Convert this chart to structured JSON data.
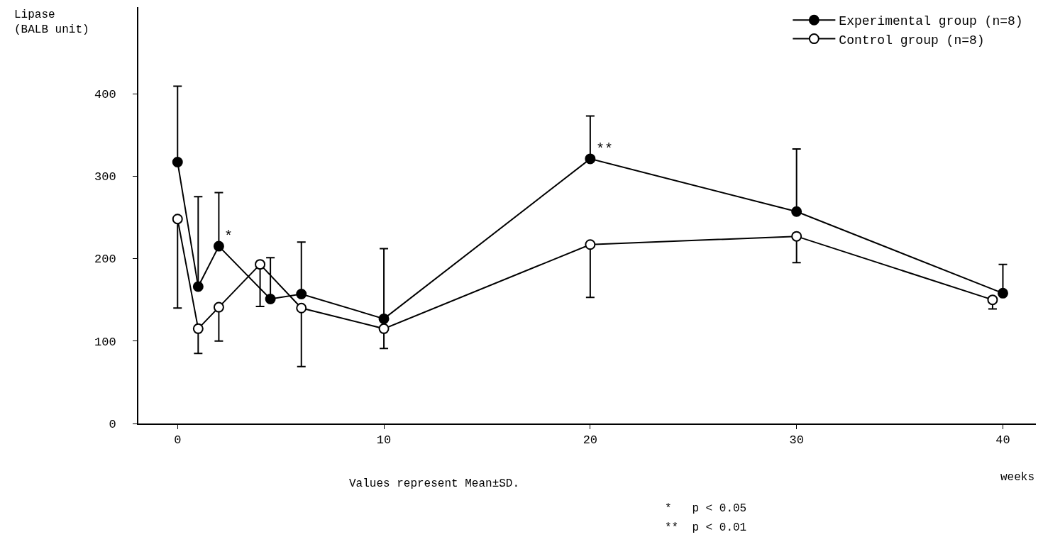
{
  "chart_data": {
    "type": "line",
    "ylabel": "Lipase\n(BALB unit)",
    "xlabel": "weeks",
    "xlim": [
      -1.9,
      41.6
    ],
    "xticks": [
      0,
      10,
      20,
      30,
      40
    ],
    "ylim": [
      0,
      505
    ],
    "yticks": [
      0,
      100,
      200,
      300,
      400
    ],
    "marker": "circle",
    "line_style": "solid",
    "legend": "top right",
    "series": [
      {
        "name": "Experimental group (n=8)",
        "color": "#000000",
        "x": [
          0,
          1,
          2,
          4.5,
          6,
          10,
          20,
          30,
          40
        ],
        "values": [
          317,
          166,
          215,
          151,
          157,
          127,
          321,
          257,
          158
        ],
        "errors": [
          [
            317,
            409
          ],
          [
            166,
            275
          ],
          [
            215,
            280
          ],
          [
            151,
            201
          ],
          [
            157,
            220
          ],
          [
            127,
            212
          ],
          [
            321,
            373
          ],
          [
            257,
            333
          ],
          [
            158,
            193
          ]
        ]
      },
      {
        "name": "Control group (n=8)",
        "color": "#000000",
        "x": [
          0,
          1,
          2,
          4,
          6,
          10,
          20,
          30,
          39.5
        ],
        "values": [
          248,
          115,
          141,
          193,
          140,
          115,
          217,
          227,
          150
        ],
        "errors": [
          [
            140,
            248
          ],
          [
            85,
            115
          ],
          [
            100,
            141
          ],
          [
            142,
            193
          ],
          [
            69,
            140
          ],
          [
            91,
            115
          ],
          [
            153,
            217
          ],
          [
            195,
            227
          ],
          [
            139,
            150
          ]
        ]
      }
    ],
    "annotations": [
      {
        "text": "*",
        "x": 2,
        "y": 215
      },
      {
        "text": "**",
        "x": 20,
        "y": 321
      },
      "Values represent Mean±SD.",
      "*   p < 0.05",
      "**  p < 0.01"
    ]
  }
}
